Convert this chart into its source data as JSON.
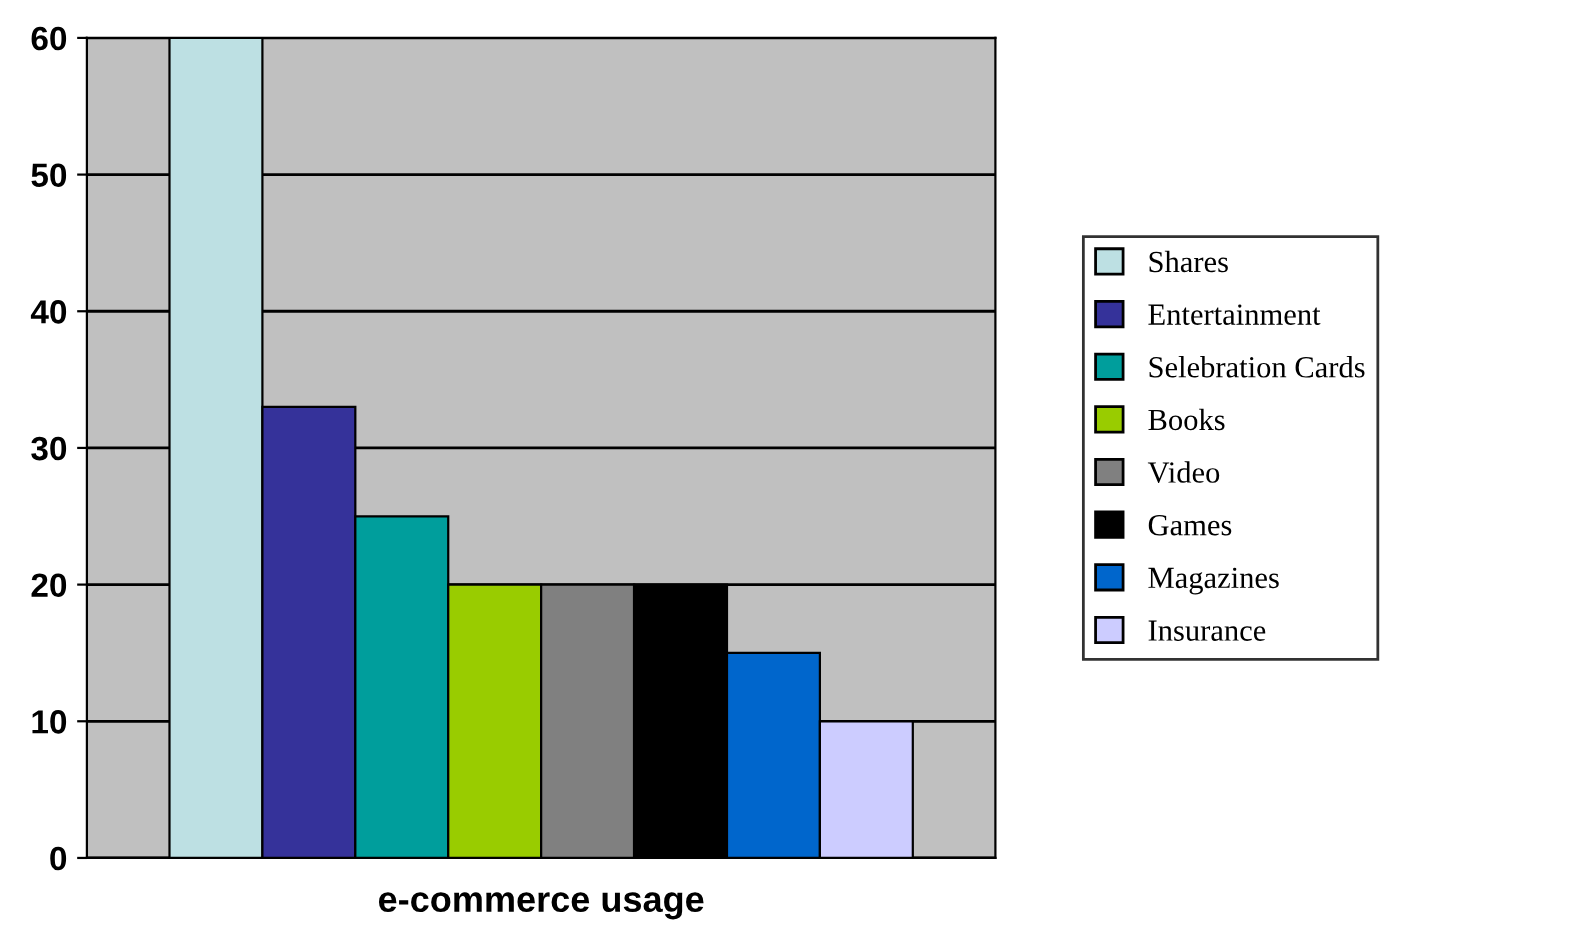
{
  "chart_data": {
    "type": "bar",
    "categories": [
      "e-commerce usage"
    ],
    "series": [
      {
        "name": "Shares",
        "color": "#bde0e3",
        "values": [
          60
        ]
      },
      {
        "name": "Entertainment",
        "color": "#35329a",
        "values": [
          33
        ]
      },
      {
        "name": "Selebration Cards",
        "color": "#009e9c",
        "values": [
          25
        ]
      },
      {
        "name": "Books",
        "color": "#99cc00",
        "values": [
          20
        ]
      },
      {
        "name": "Video",
        "color": "#808080",
        "values": [
          20
        ]
      },
      {
        "name": "Games",
        "color": "#000000",
        "values": [
          20
        ]
      },
      {
        "name": "Magazines",
        "color": "#0066cc",
        "values": [
          15
        ]
      },
      {
        "name": "Insurance",
        "color": "#ccccff",
        "values": [
          10
        ]
      }
    ],
    "ylim": [
      0,
      60
    ],
    "yticks": [
      0,
      10,
      20,
      30,
      40,
      50,
      60
    ],
    "grid": "y",
    "legend": "right"
  }
}
